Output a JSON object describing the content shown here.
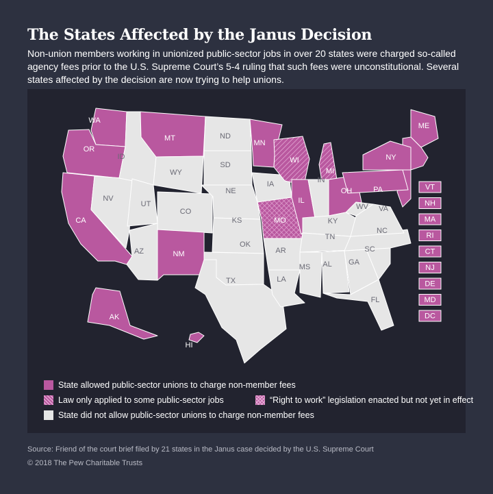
{
  "title": "The States Affected by the Janus Decision",
  "subtitle": "Non-union members working in unionized public-sector jobs in over 20 states were charged so-called agency fees prior to the U.S. Supreme Court’s 5-4 ruling that such fees were unconstitutional. Several states affected by the decision are now trying to help unions.",
  "colors": {
    "background": "#2d3140",
    "panel": "#22232f",
    "allowed": "#b9589f",
    "not_allowed": "#e6e6e6",
    "state_border": "#ffffff"
  },
  "states": [
    {
      "code": "WA",
      "category": "allowed"
    },
    {
      "code": "OR",
      "category": "allowed"
    },
    {
      "code": "CA",
      "category": "allowed"
    },
    {
      "code": "NV",
      "category": "not_allowed"
    },
    {
      "code": "ID",
      "category": "not_allowed"
    },
    {
      "code": "MT",
      "category": "allowed"
    },
    {
      "code": "WY",
      "category": "not_allowed"
    },
    {
      "code": "UT",
      "category": "not_allowed"
    },
    {
      "code": "AZ",
      "category": "not_allowed"
    },
    {
      "code": "CO",
      "category": "not_allowed"
    },
    {
      "code": "NM",
      "category": "allowed"
    },
    {
      "code": "ND",
      "category": "not_allowed"
    },
    {
      "code": "SD",
      "category": "not_allowed"
    },
    {
      "code": "NE",
      "category": "not_allowed"
    },
    {
      "code": "KS",
      "category": "not_allowed"
    },
    {
      "code": "OK",
      "category": "not_allowed"
    },
    {
      "code": "TX",
      "category": "not_allowed"
    },
    {
      "code": "MN",
      "category": "allowed"
    },
    {
      "code": "IA",
      "category": "not_allowed"
    },
    {
      "code": "MO",
      "category": "rtw_not_in_effect"
    },
    {
      "code": "AR",
      "category": "not_allowed"
    },
    {
      "code": "LA",
      "category": "not_allowed"
    },
    {
      "code": "WI",
      "category": "some_jobs"
    },
    {
      "code": "IL",
      "category": "allowed"
    },
    {
      "code": "MI",
      "category": "some_jobs"
    },
    {
      "code": "IN",
      "category": "not_allowed"
    },
    {
      "code": "OH",
      "category": "allowed"
    },
    {
      "code": "KY",
      "category": "not_allowed"
    },
    {
      "code": "TN",
      "category": "not_allowed"
    },
    {
      "code": "MS",
      "category": "not_allowed"
    },
    {
      "code": "AL",
      "category": "not_allowed"
    },
    {
      "code": "GA",
      "category": "not_allowed"
    },
    {
      "code": "FL",
      "category": "not_allowed"
    },
    {
      "code": "SC",
      "category": "not_allowed"
    },
    {
      "code": "NC",
      "category": "not_allowed"
    },
    {
      "code": "VA",
      "category": "not_allowed"
    },
    {
      "code": "WV",
      "category": "not_allowed"
    },
    {
      "code": "PA",
      "category": "allowed"
    },
    {
      "code": "NY",
      "category": "allowed"
    },
    {
      "code": "ME",
      "category": "allowed"
    },
    {
      "code": "AK",
      "category": "allowed"
    },
    {
      "code": "HI",
      "category": "allowed"
    }
  ],
  "small_states": [
    {
      "code": "VT",
      "category": "allowed"
    },
    {
      "code": "NH",
      "category": "allowed"
    },
    {
      "code": "MA",
      "category": "allowed"
    },
    {
      "code": "RI",
      "category": "allowed"
    },
    {
      "code": "CT",
      "category": "allowed"
    },
    {
      "code": "NJ",
      "category": "allowed"
    },
    {
      "code": "DE",
      "category": "allowed"
    },
    {
      "code": "MD",
      "category": "allowed"
    },
    {
      "code": "DC",
      "category": "allowed"
    }
  ],
  "legend": {
    "allowed": "State allowed public-sector unions to charge non-member fees",
    "some_jobs": "Law only applied to some public-sector jobs",
    "rtw_not_in_effect": "“Right to work” legislation enacted but not yet in effect",
    "not_allowed": "State did not allow public-sector unions to charge non-member fees"
  },
  "source": "Source: Friend of the court brief filed by 21 states in the Janus case decided by the U.S. Supreme Court",
  "copyright": "© 2018 The Pew Charitable Trusts"
}
